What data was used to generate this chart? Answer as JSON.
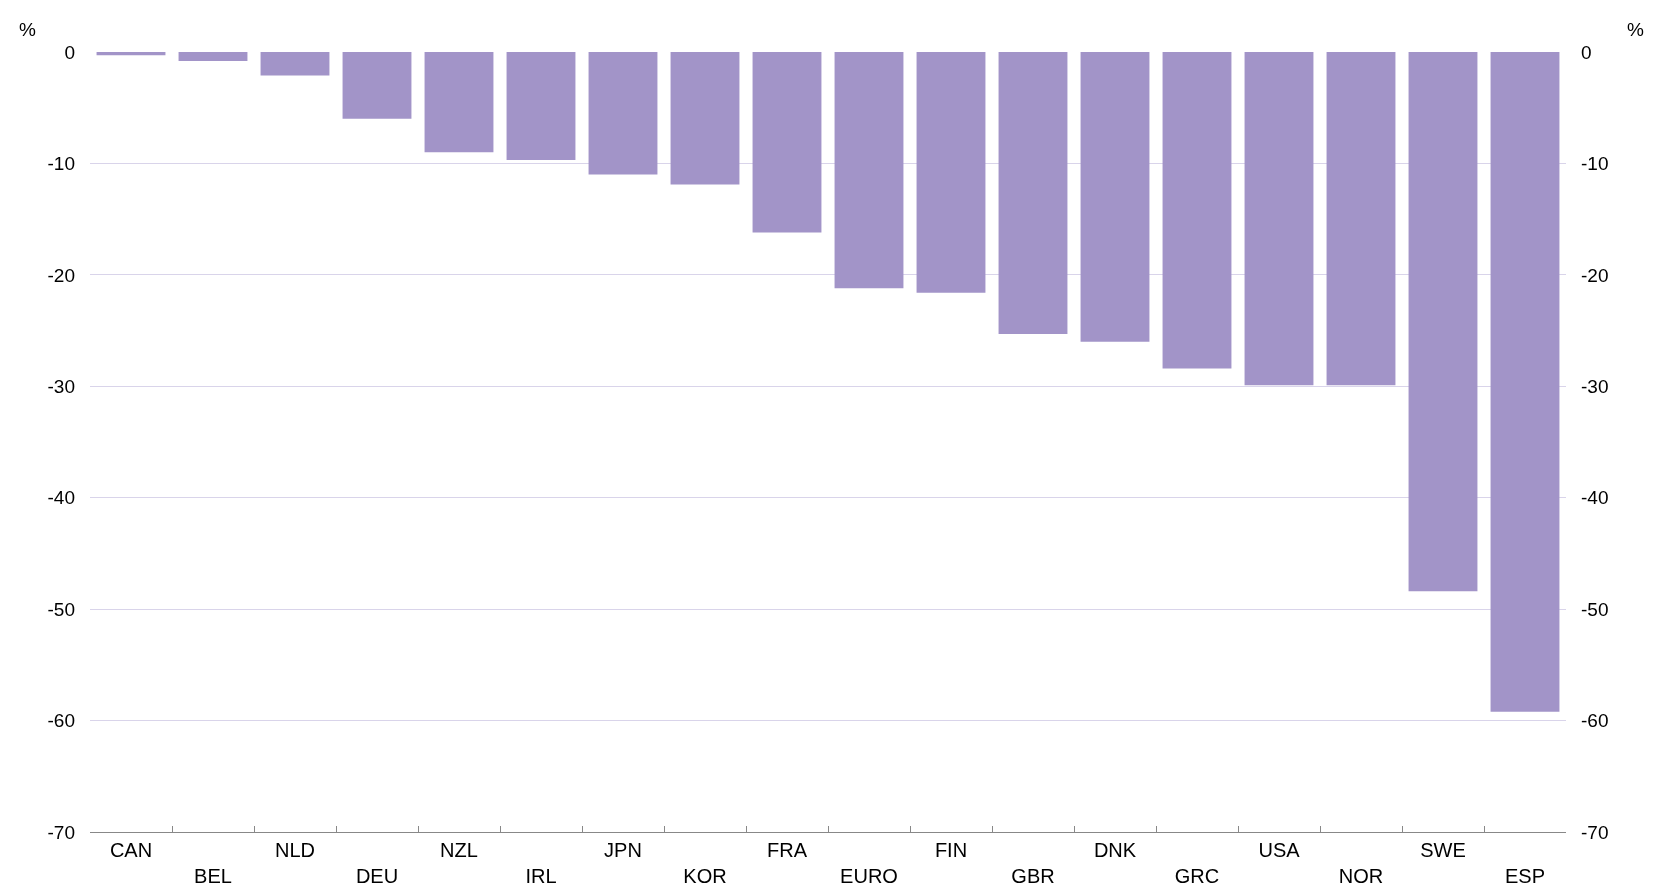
{
  "chart_data": {
    "type": "bar",
    "ylabel": "%",
    "y2label": "%",
    "categories": [
      "CAN",
      "BEL",
      "NLD",
      "DEU",
      "NZL",
      "IRL",
      "JPN",
      "KOR",
      "FRA",
      "EURO",
      "FIN",
      "GBR",
      "DNK",
      "GRC",
      "USA",
      "NOR",
      "SWE",
      "ESP"
    ],
    "values": [
      -0.3,
      -0.8,
      -2.1,
      -6.0,
      -9.0,
      -9.7,
      -11.0,
      -11.9,
      -16.2,
      -21.2,
      -21.6,
      -25.3,
      -26.0,
      -28.4,
      -29.9,
      -29.9,
      -48.4,
      -59.2
    ],
    "color": "#a294c8",
    "ylim": [
      -70,
      0
    ],
    "yticks": [
      0,
      -10,
      -20,
      -30,
      -40,
      -50,
      -60,
      -70
    ],
    "y2lim": [
      -70,
      0
    ],
    "y2ticks": [
      0,
      -10,
      -20,
      -30,
      -40,
      -50,
      -60,
      -70
    ],
    "grid": "y"
  }
}
